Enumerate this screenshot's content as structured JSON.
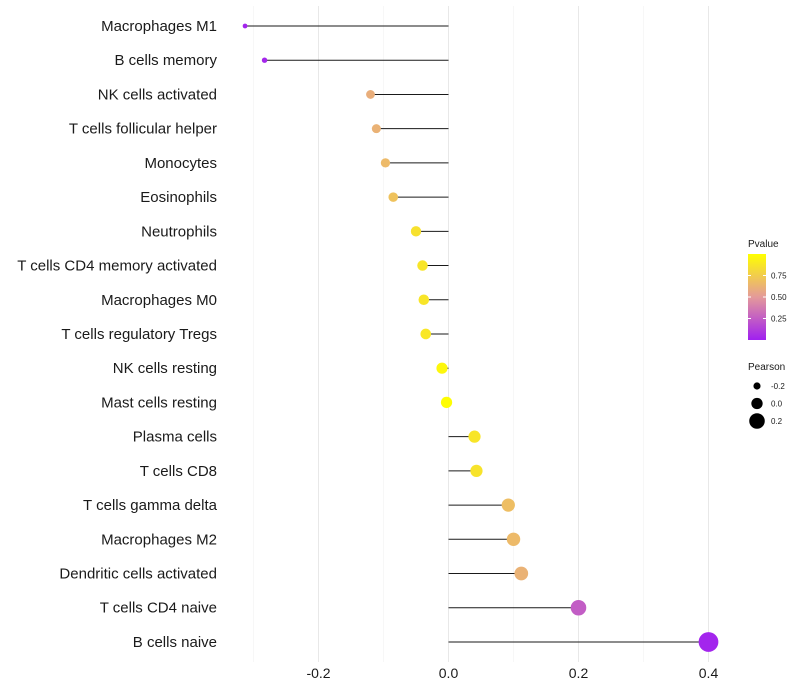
{
  "chart_data": {
    "type": "lollipop",
    "title": "",
    "xlabel": "",
    "ylabel": "",
    "xlim": [
      -0.3,
      0.4
    ],
    "x_ticks": [
      -0.2,
      0.0,
      0.2,
      0.4
    ],
    "x_tick_labels": [
      "-0.2",
      "0.0",
      "0.2",
      "0.4"
    ],
    "categories": [
      "Macrophages M1",
      "B cells memory",
      "NK cells activated",
      "T cells follicular helper",
      "Monocytes",
      "Eosinophils",
      "Neutrophils",
      "T cells CD4 memory activated",
      "Macrophages M0",
      "T cells regulatory  Tregs",
      "NK cells resting",
      "Mast cells resting",
      "Plasma cells",
      "T cells CD8",
      "T cells gamma delta",
      "Macrophages M2",
      "Dendritic cells activated",
      "T cells CD4 naive",
      "B cells naive"
    ],
    "pearson": [
      -0.313,
      -0.283,
      -0.12,
      -0.111,
      -0.097,
      -0.085,
      -0.05,
      -0.04,
      -0.038,
      -0.035,
      -0.01,
      -0.003,
      0.04,
      0.043,
      0.092,
      0.1,
      0.112,
      0.2,
      0.4
    ],
    "pvalue": [
      0.02,
      0.03,
      0.6,
      0.62,
      0.66,
      0.7,
      0.85,
      0.87,
      0.87,
      0.88,
      0.96,
      0.99,
      0.87,
      0.86,
      0.68,
      0.66,
      0.62,
      0.25,
      0.02
    ],
    "legend_color": {
      "title": "Pvalue",
      "ticks": [
        "0.75",
        "0.50",
        "0.25"
      ],
      "range": [
        0.0,
        1.0
      ],
      "low_color": "#a020f0",
      "mid_color": "#e49a9a",
      "high_color": "#ffff00"
    },
    "legend_size": {
      "title": "Pearson",
      "ticks": [
        "-0.2",
        "0.0",
        "0.2"
      ]
    }
  }
}
